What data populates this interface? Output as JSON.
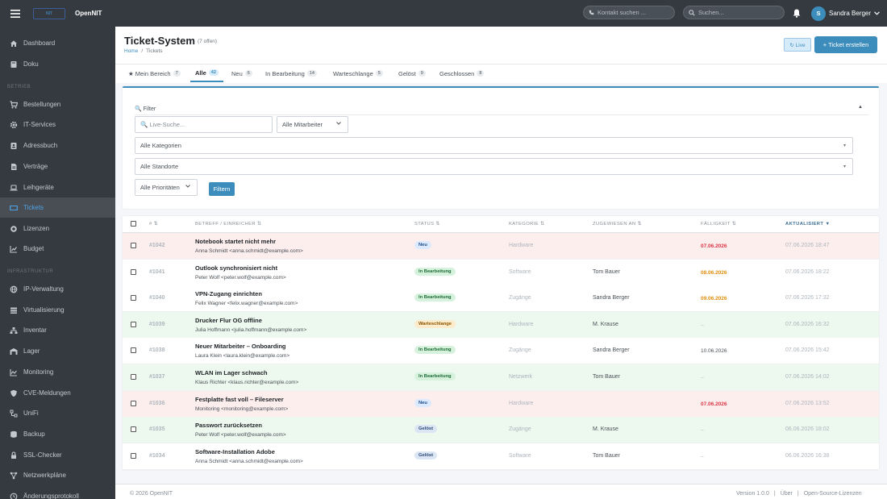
{
  "topbar": {
    "app_name": "OpenNIT",
    "logo_text": "NIT",
    "contact_search_placeholder": "Kontakt suchen ...",
    "search_placeholder": "Suchen...",
    "user_initial": "S",
    "user_name": "Sandra Berger"
  },
  "sidebar": {
    "items_top": [
      {
        "label": "Dashboard",
        "icon": "home-icon"
      },
      {
        "label": "Doku",
        "icon": "book-icon"
      }
    ],
    "section_betrieb": "BETRIEB",
    "items_betrieb": [
      {
        "label": "Bestellungen",
        "icon": "cart-icon"
      },
      {
        "label": "IT-Services",
        "icon": "gear-icon"
      },
      {
        "label": "Adressbuch",
        "icon": "address-book-icon"
      },
      {
        "label": "Verträge",
        "icon": "contract-icon"
      },
      {
        "label": "Leihgeräte",
        "icon": "laptop-icon"
      },
      {
        "label": "Tickets",
        "icon": "ticket-icon",
        "active": true
      },
      {
        "label": "Lizenzen",
        "icon": "certificate-icon"
      },
      {
        "label": "Budget",
        "icon": "chart-icon"
      }
    ],
    "section_infra": "INFRASTRUKTUR",
    "items_infra": [
      {
        "label": "IP-Verwaltung",
        "icon": "globe-icon"
      },
      {
        "label": "Virtualisierung",
        "icon": "server-icon"
      },
      {
        "label": "Inventar",
        "icon": "network-icon"
      },
      {
        "label": "Lager",
        "icon": "warehouse-icon"
      },
      {
        "label": "Monitoring",
        "icon": "monitoring-icon"
      },
      {
        "label": "CVE-Meldungen",
        "icon": "shield-icon"
      },
      {
        "label": "UniFi",
        "icon": "unifi-icon"
      },
      {
        "label": "Backup",
        "icon": "backup-icon"
      },
      {
        "label": "SSL-Checker",
        "icon": "lock-icon"
      },
      {
        "label": "Netzwerkpläne",
        "icon": "diagram-icon"
      },
      {
        "label": "Änderungsprotokoll",
        "icon": "history-icon"
      }
    ]
  },
  "header": {
    "title": "Ticket-System",
    "open_count": "(7 offen)",
    "breadcrumb_home": "Home",
    "breadcrumb_sep": "/",
    "breadcrumb_current": "Tickets",
    "live_label": "↻ Live",
    "new_ticket_label": "+ Ticket erstellen"
  },
  "tabs": [
    {
      "label": "★ Mein Bereich",
      "count": "7"
    },
    {
      "label": "Alle",
      "count": "42",
      "active": true
    },
    {
      "label": "Neu",
      "count": "6"
    },
    {
      "label": "In Bearbeitung",
      "count": "14"
    },
    {
      "label": "Warteschlange",
      "count": "5"
    },
    {
      "label": "Gelöst",
      "count": "9"
    },
    {
      "label": "Geschlossen",
      "count": "8"
    }
  ],
  "filter": {
    "title": "🔍 Filter",
    "live_search_placeholder": "🔍 Live-Suche...",
    "employee_select": "Alle Mitarbeiter",
    "category_select": "Alle Kategorien",
    "location_select": "Alle Standorte",
    "priority_select": "Alle Prioritäten",
    "filter_button": "Filtern"
  },
  "table": {
    "columns": [
      "# ⇅",
      "BETREFF / EINREICHER ⇅",
      "STATUS ⇅",
      "KATEGORIE ⇅",
      "ZUGEWIESEN AN ⇅",
      "FÄLLIGKEIT ⇅",
      "AKTUALISIERT ▼"
    ],
    "rows": [
      {
        "id": "#1042",
        "subject": "Notebook startet nicht mehr",
        "requester": "Anna Schmidt <anna.schmidt@example.com>",
        "status": "Neu",
        "category": "Hardware",
        "assignee": "",
        "due": "07.06.2026",
        "updated": "07.06.2026 18:47"
      },
      {
        "id": "#1041",
        "subject": "Outlook synchronisiert nicht",
        "requester": "Peter Wolf <peter.wolf@example.com>",
        "status": "In Bearbeitung",
        "category": "Software",
        "assignee": "Tom Bauer",
        "due": "08.06.2026",
        "updated": "07.06.2026 18:22"
      },
      {
        "id": "#1040",
        "subject": "VPN-Zugang einrichten",
        "requester": "Felix Wagner <felix.wagner@example.com>",
        "status": "In Bearbeitung",
        "category": "Zugänge",
        "assignee": "Sandra Berger",
        "due": "09.06.2026",
        "updated": "07.06.2026 17:32"
      },
      {
        "id": "#1039",
        "subject": "Drucker Flur OG offline",
        "requester": "Julia Hoffmann <julia.hoffmann@example.com>",
        "status": "Warteschlange",
        "category": "Hardware",
        "assignee": "M. Krause",
        "due": "–",
        "updated": "07.06.2026 16:32"
      },
      {
        "id": "#1038",
        "subject": "Neuer Mitarbeiter – Onboarding",
        "requester": "Laura Klein <laura.klein@example.com>",
        "status": "In Bearbeitung",
        "category": "Zugänge",
        "assignee": "Sandra Berger",
        "due": "10.06.2026",
        "updated": "07.06.2026 15:42"
      },
      {
        "id": "#1037",
        "subject": "WLAN im Lager schwach",
        "requester": "Klaus Richter <klaus.richter@example.com>",
        "status": "In Bearbeitung",
        "category": "Netzwerk",
        "assignee": "Tom Bauer",
        "due": "–",
        "updated": "07.06.2026 14:02"
      },
      {
        "id": "#1036",
        "subject": "Festplatte fast voll – Fileserver",
        "requester": "Monitoring <monitoring@example.com>",
        "status": "Neu",
        "category": "Hardware",
        "assignee": "",
        "due": "07.06.2026",
        "updated": "07.06.2026 13:52"
      },
      {
        "id": "#1035",
        "subject": "Passwort zurücksetzen",
        "requester": "Peter Wolf <peter.wolf@example.com>",
        "status": "Gelöst",
        "category": "Zugänge",
        "assignee": "M. Krause",
        "due": "–",
        "updated": "06.06.2026 18:02"
      },
      {
        "id": "#1034",
        "subject": "Software-Installation Adobe",
        "requester": "Anna Schmidt <anna.schmidt@example.com>",
        "status": "Gelöst",
        "category": "Software",
        "assignee": "Tom Bauer",
        "due": "–",
        "updated": "06.06.2026 16:38"
      }
    ]
  },
  "footer": {
    "copyright": "© 2026 OpenNIT",
    "version": "Version 1.0.0",
    "sep": "|",
    "about": "Über",
    "licenses": "Open-Source-Lizenzen"
  },
  "colors": {
    "accent": "#3c8dbc",
    "sidebar_bg": "#343a40",
    "row_red": "#fdeeee",
    "row_green": "#edf8ef",
    "due_red": "#dc3545",
    "due_orange": "#e08e0b"
  }
}
